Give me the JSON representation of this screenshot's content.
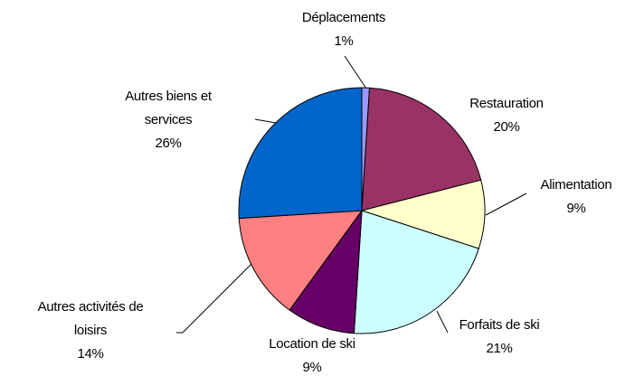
{
  "chart_data": {
    "type": "pie",
    "categories": [
      "Déplacements",
      "Restauration",
      "Alimentation",
      "Forfaits de ski",
      "Location de ski",
      "Autres activités de loisirs",
      "Autres biens et services"
    ],
    "values": [
      1,
      20,
      9,
      21,
      9,
      14,
      26
    ],
    "value_labels": [
      "1%",
      "20%",
      "9%",
      "21%",
      "9%",
      "14%",
      "26%"
    ],
    "colors": [
      "#9999ff",
      "#993366",
      "#ffffcc",
      "#ccffff",
      "#660066",
      "#ff8080",
      "#0066cc"
    ]
  }
}
